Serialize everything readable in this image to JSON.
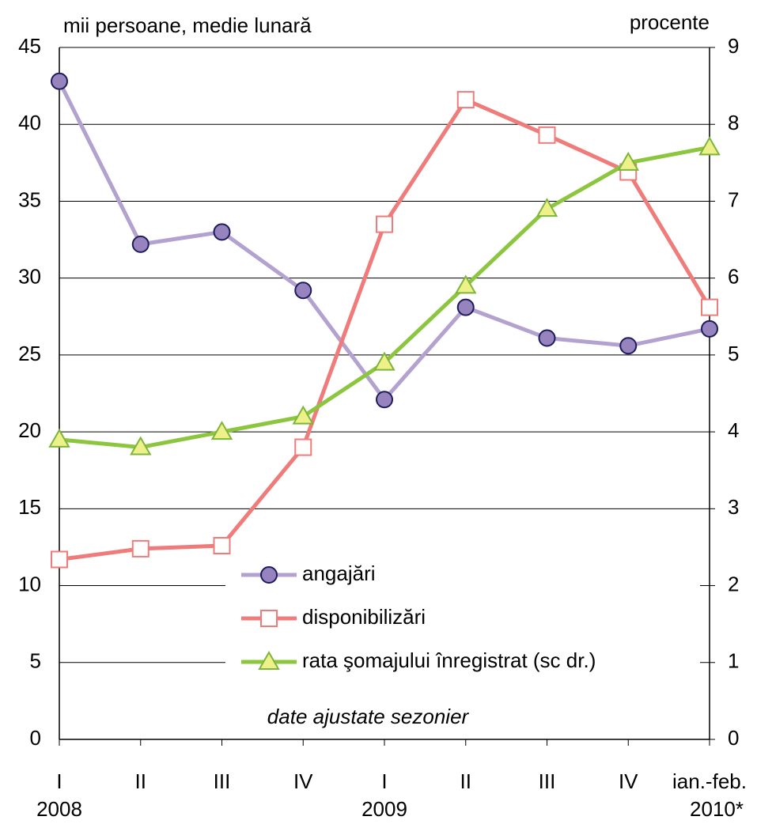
{
  "chart_data": {
    "type": "line",
    "y_label": "mii persoane, medie lunară",
    "y2_label": "procente",
    "annotation": "date ajustate sezonier",
    "categories": [
      "I",
      "II",
      "III",
      "IV",
      "I",
      "II",
      "III",
      "IV",
      "ian.-feb."
    ],
    "years": [
      "2008",
      null,
      null,
      null,
      "2009",
      null,
      null,
      null,
      "2010*"
    ],
    "series": [
      {
        "name": "angajări",
        "color": "#b3a2cf",
        "marker": "circle",
        "marker_fill": "#9783bd",
        "marker_edge": "#1c1c5c",
        "values": [
          42.8,
          32.2,
          33.0,
          29.2,
          22.1,
          28.1,
          26.1,
          25.6,
          26.7
        ]
      },
      {
        "name": "disponibilizări",
        "color": "#ef7b7b",
        "marker": "square",
        "marker_fill": "#ffffff",
        "marker_edge": "#ef7b7b",
        "values": [
          11.7,
          12.4,
          12.6,
          19.0,
          33.5,
          41.6,
          39.3,
          36.9,
          28.1
        ]
      },
      {
        "name": "rata şomajului înregistrat (sc dr.)",
        "color": "#8cc63f",
        "marker": "triangle",
        "marker_fill": "#eef08a",
        "marker_edge": "#7db53a",
        "axis": "y2",
        "values": [
          3.9,
          3.8,
          4.0,
          4.2,
          4.9,
          5.9,
          6.9,
          7.5,
          7.7
        ]
      }
    ],
    "ylim": [
      0,
      45
    ],
    "yticks": [
      0,
      5,
      10,
      15,
      20,
      25,
      30,
      35,
      40,
      45
    ],
    "y2lim": [
      0,
      9
    ],
    "y2ticks": [
      0,
      1,
      2,
      3,
      4,
      5,
      6,
      7,
      8,
      9
    ],
    "grid": true,
    "legend": "bottom-center"
  }
}
